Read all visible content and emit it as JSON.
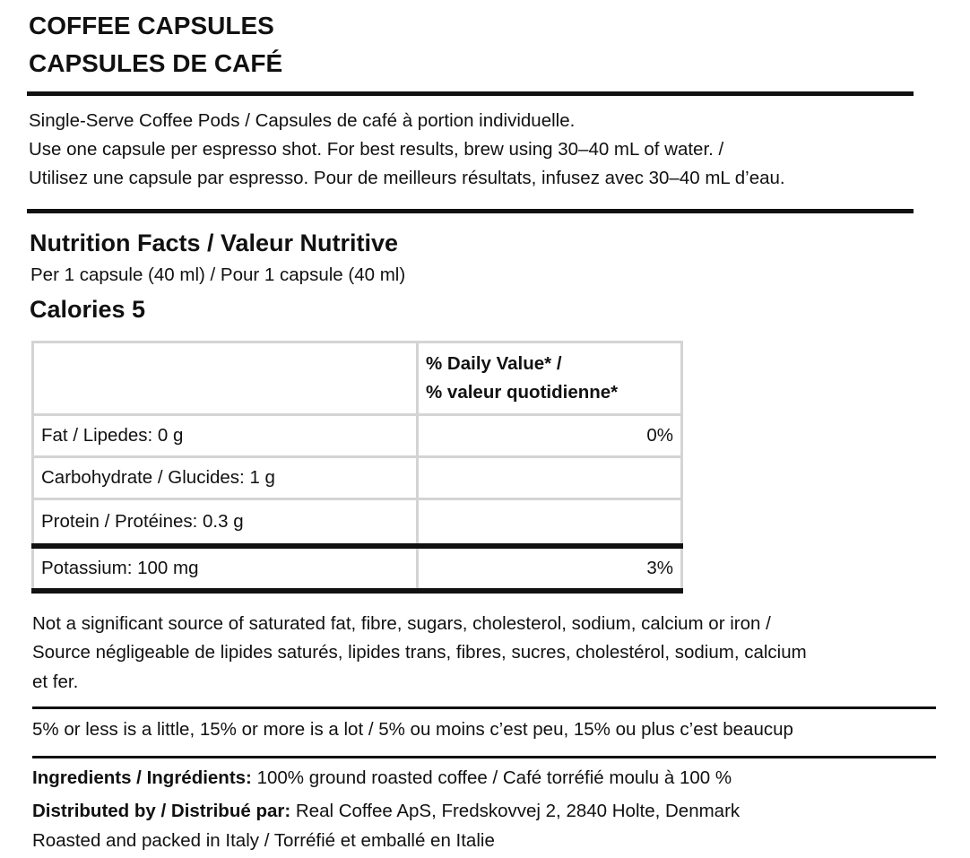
{
  "title_en": "COFFEE CAPSULES",
  "title_fr": "CAPSULES DE CAFÉ",
  "description": [
    "Single-Serve Coffee Pods / Capsules de café à portion individuelle.",
    "Use one capsule per espresso shot. For best results, brew using 30–40 mL of water. /",
    "Utilisez une capsule par espresso. Pour de meilleurs résultats, infusez avec 30–40 mL d’eau."
  ],
  "nutrition": {
    "heading": "Nutrition Facts / Valeur Nutritive",
    "serving": "Per 1 capsule (40 ml) / Pour 1 capsule (40 ml)",
    "calories": "Calories 5",
    "dv_header_1": "% Daily Value* /",
    "dv_header_2": "% valeur quotidienne*",
    "rows": [
      {
        "nutrient": "Fat / Lipedes: 0 g",
        "dv": "0%"
      },
      {
        "nutrient": "Carbohydrate / Glucides: 1 g",
        "dv": ""
      },
      {
        "nutrient": "Protein / Protéines: 0.3 g",
        "dv": ""
      },
      {
        "nutrient": "Potassium: 100 mg",
        "dv": "3%"
      }
    ]
  },
  "not_significant": [
    "Not a significant source of saturated fat, fibre, sugars, cholesterol, sodium, calcium or iron /",
    "Source négligeable de lipides saturés, lipides trans, fibres, sucres, cholestérol, sodium, calcium",
    "et fer."
  ],
  "dv_guide": "5% or less is a little, 15% or more is a lot / 5% ou moins c’est peu, 15% ou plus c’est beaucup",
  "ingredients_label": "Ingredients / Ingrédients:",
  "ingredients": " 100% ground roasted coffee / Café torréfié moulu à 100 %",
  "distributor_label": "Distributed by / Distribué par:",
  "distributor": " Real Coffee ApS, Fredskovvej 2, 2840 Holte, Denmark",
  "origin": "Roasted and packed in Italy / Torréfié et emballé en Italie"
}
